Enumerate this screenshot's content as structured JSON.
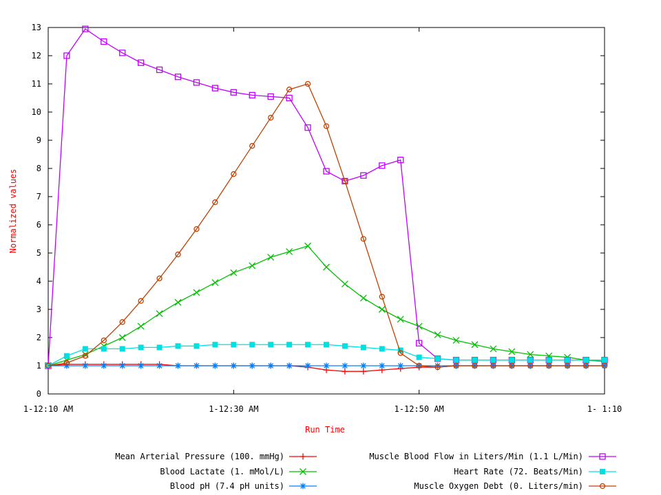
{
  "chart_data": {
    "type": "line",
    "title": "",
    "xlabel": "Run Time",
    "ylabel": "Normalized values",
    "ylim": [
      0,
      13
    ],
    "yticks": [
      "0",
      "1",
      "2",
      "3",
      "4",
      "5",
      "6",
      "7",
      "8",
      "9",
      "10",
      "11",
      "12",
      "13"
    ],
    "xticks": [
      {
        "value": 0,
        "label": "1-12:10 AM"
      },
      {
        "value": 20,
        "label": "1-12:30 AM"
      },
      {
        "value": 40,
        "label": "1-12:50 AM"
      },
      {
        "value": 60,
        "label": "1- 1:10"
      }
    ],
    "xlim": [
      0,
      60
    ],
    "x": [
      0,
      2,
      4,
      6,
      8,
      10,
      12,
      14,
      16,
      18,
      20,
      22,
      24,
      26,
      28,
      30,
      32,
      34,
      36,
      38,
      40,
      42,
      44,
      46,
      48,
      50,
      52,
      54,
      56,
      58,
      60
    ],
    "grid": false,
    "legend_position": "bottom",
    "series": [
      {
        "name": "Mean Arterial Pressure (100. mmHg)",
        "color": "#ff0000",
        "marker": "plus",
        "values": [
          1.0,
          1.05,
          1.05,
          1.05,
          1.05,
          1.05,
          1.05,
          1.0,
          1.0,
          1.0,
          1.0,
          1.0,
          1.0,
          1.0,
          0.95,
          0.85,
          0.8,
          0.8,
          0.85,
          0.9,
          0.95,
          0.95,
          1.0,
          1.0,
          1.0,
          1.0,
          1.0,
          1.0,
          1.0,
          1.0,
          1.0
        ]
      },
      {
        "name": "Blood Lactate (1. mMol/L)",
        "color": "#00c000",
        "marker": "x",
        "values": [
          1.0,
          1.2,
          1.4,
          1.7,
          2.0,
          2.4,
          2.85,
          3.25,
          3.6,
          3.95,
          4.3,
          4.55,
          4.85,
          5.05,
          5.25,
          4.5,
          3.9,
          3.4,
          3.0,
          2.65,
          2.4,
          2.1,
          1.9,
          1.75,
          1.6,
          1.5,
          1.4,
          1.35,
          1.3,
          1.2,
          1.15
        ]
      },
      {
        "name": "Blood pH (7.4 pH units)",
        "color": "#0080ff",
        "marker": "asterisk",
        "values": [
          1.0,
          1.0,
          1.0,
          1.0,
          1.0,
          1.0,
          1.0,
          1.0,
          1.0,
          1.0,
          1.0,
          1.0,
          1.0,
          1.0,
          1.0,
          1.0,
          1.0,
          1.0,
          1.0,
          1.0,
          1.0,
          1.0,
          1.0,
          1.0,
          1.0,
          1.0,
          1.0,
          1.0,
          1.0,
          1.0,
          1.0
        ]
      },
      {
        "name": "Muscle Blood Flow in Liters/Min (1.1 L/Min)",
        "color": "#c000ff",
        "marker": "square-open",
        "values": [
          1.0,
          12.0,
          12.95,
          12.5,
          12.1,
          11.75,
          11.5,
          11.25,
          11.05,
          10.85,
          10.7,
          10.6,
          10.55,
          10.5,
          9.45,
          7.9,
          7.55,
          7.75,
          8.1,
          8.3,
          1.8,
          1.25,
          1.2,
          1.2,
          1.2,
          1.2,
          1.2,
          1.2,
          1.2,
          1.2,
          1.2
        ]
      },
      {
        "name": "Heart Rate (72. Beats/Min)",
        "color": "#00e0e0",
        "marker": "square-filled",
        "values": [
          1.0,
          1.35,
          1.6,
          1.6,
          1.6,
          1.65,
          1.65,
          1.7,
          1.7,
          1.75,
          1.75,
          1.75,
          1.75,
          1.75,
          1.75,
          1.75,
          1.7,
          1.65,
          1.6,
          1.55,
          1.3,
          1.25,
          1.2,
          1.2,
          1.2,
          1.2,
          1.2,
          1.2,
          1.2,
          1.2,
          1.2
        ]
      },
      {
        "name": "Muscle Oxygen Debt (0. Liters/min)",
        "color": "#c04000",
        "marker": "circle",
        "values": [
          1.0,
          1.1,
          1.35,
          1.9,
          2.55,
          3.3,
          4.1,
          4.95,
          5.85,
          6.8,
          7.8,
          8.8,
          9.8,
          10.8,
          11.0,
          9.5,
          7.55,
          5.5,
          3.45,
          1.45,
          1.0,
          0.95,
          1.0,
          1.0,
          1.0,
          1.0,
          1.0,
          1.0,
          1.0,
          1.0,
          1.0
        ]
      }
    ]
  }
}
